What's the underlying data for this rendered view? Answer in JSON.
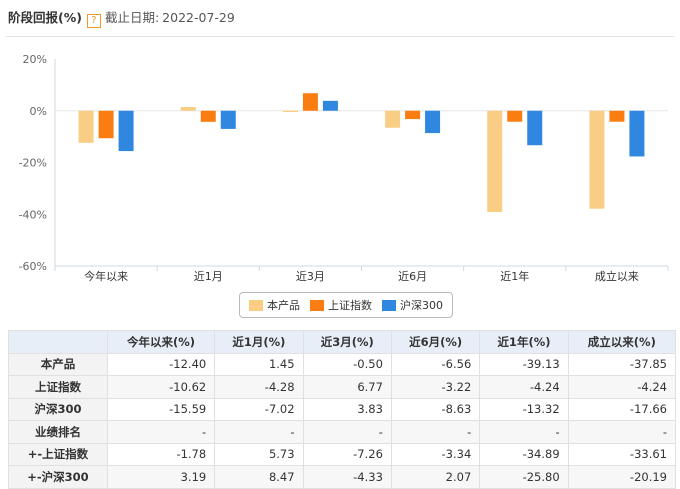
{
  "header": {
    "title": "阶段回报(%)",
    "help": "?",
    "date_label": "截止日期:",
    "date_value": "2022-07-29"
  },
  "chart_data": {
    "type": "bar",
    "categories": [
      "今年以来",
      "近1月",
      "近3月",
      "近6月",
      "近1年",
      "成立以来"
    ],
    "series": [
      {
        "name": "本产品",
        "color": "#f9cd84",
        "values": [
          -12.4,
          1.45,
          -0.5,
          -6.56,
          -39.13,
          -37.85
        ]
      },
      {
        "name": "上证指数",
        "color": "#fa7d12",
        "values": [
          -10.62,
          -4.28,
          6.77,
          -3.22,
          -4.24,
          -4.24
        ]
      },
      {
        "name": "沪深300",
        "color": "#2f87e0",
        "values": [
          -15.59,
          -7.02,
          3.83,
          -8.63,
          -13.32,
          -17.66
        ]
      }
    ],
    "ylim": [
      -60,
      20
    ],
    "yticks": [
      20,
      0,
      -20,
      -40,
      -60
    ],
    "ytick_labels": [
      "20%",
      "0%",
      "-20%",
      "-40%",
      "-60%"
    ],
    "grid": false,
    "legend_position": "bottom-center"
  },
  "table": {
    "headers": [
      "",
      "今年以来(%)",
      "近1月(%)",
      "近3月(%)",
      "近6月(%)",
      "近1年(%)",
      "成立以来(%)"
    ],
    "rows": [
      {
        "label": "本产品",
        "cells": [
          "-12.40",
          "1.45",
          "-0.50",
          "-6.56",
          "-39.13",
          "-37.85"
        ]
      },
      {
        "label": "上证指数",
        "cells": [
          "-10.62",
          "-4.28",
          "6.77",
          "-3.22",
          "-4.24",
          "-4.24"
        ]
      },
      {
        "label": "沪深300",
        "cells": [
          "-15.59",
          "-7.02",
          "3.83",
          "-8.63",
          "-13.32",
          "-17.66"
        ]
      },
      {
        "label": "业绩排名",
        "cells": [
          "-",
          "-",
          "-",
          "-",
          "-",
          "-"
        ]
      },
      {
        "label": "+-上证指数",
        "cells": [
          "-1.78",
          "5.73",
          "-7.26",
          "-3.34",
          "-34.89",
          "-33.61"
        ]
      },
      {
        "label": "+-沪深300",
        "cells": [
          "3.19",
          "8.47",
          "-4.33",
          "2.07",
          "-25.80",
          "-20.19"
        ]
      }
    ]
  }
}
